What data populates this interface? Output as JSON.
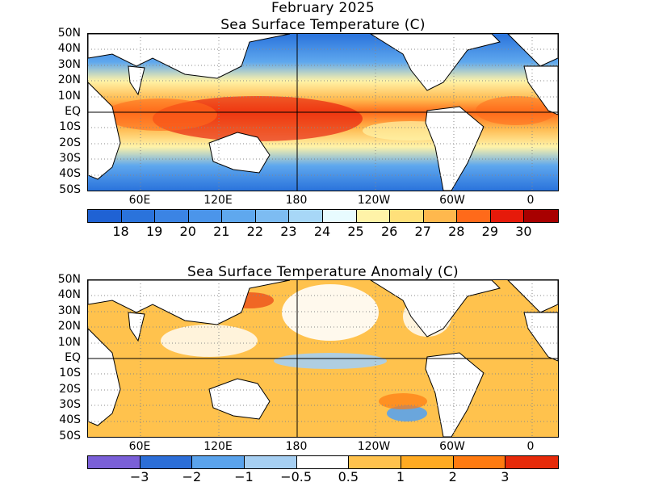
{
  "figure": {
    "title_line1": "February 2025",
    "title_line2": "Sea Surface Temperature (C)",
    "title_anom": "Sea Surface Temperature Anomaly (C)"
  },
  "axes": {
    "lat_labels": [
      "50N",
      "40N",
      "30N",
      "20N",
      "10N",
      "EQ",
      "10S",
      "20S",
      "30S",
      "40S",
      "50S"
    ],
    "lon_labels": [
      "60E",
      "120E",
      "180",
      "120W",
      "60W",
      "0"
    ]
  },
  "sst_colorbar": {
    "colors": [
      "#1f62d4",
      "#2a73dc",
      "#3b84e4",
      "#4b95ea",
      "#5fa8ee",
      "#7dbcf2",
      "#a7d7f7",
      "#e8fbff",
      "#fff3a8",
      "#ffe07a",
      "#ffb84d",
      "#ff6a1a",
      "#e61a0a",
      "#a80000"
    ],
    "labels": [
      "18",
      "19",
      "20",
      "21",
      "22",
      "23",
      "24",
      "25",
      "26",
      "27",
      "28",
      "29",
      "30"
    ]
  },
  "anom_colorbar": {
    "colors": [
      "#7a5fd8",
      "#2c6ed8",
      "#5aa3ec",
      "#a6cff2",
      "#ffffff",
      "#ffc24d",
      "#ffaa22",
      "#ff7a10",
      "#e62a0a"
    ],
    "labels": [
      "−3",
      "−2",
      "−1",
      "−0.5",
      "0.5",
      "1",
      "2",
      "3"
    ]
  }
}
